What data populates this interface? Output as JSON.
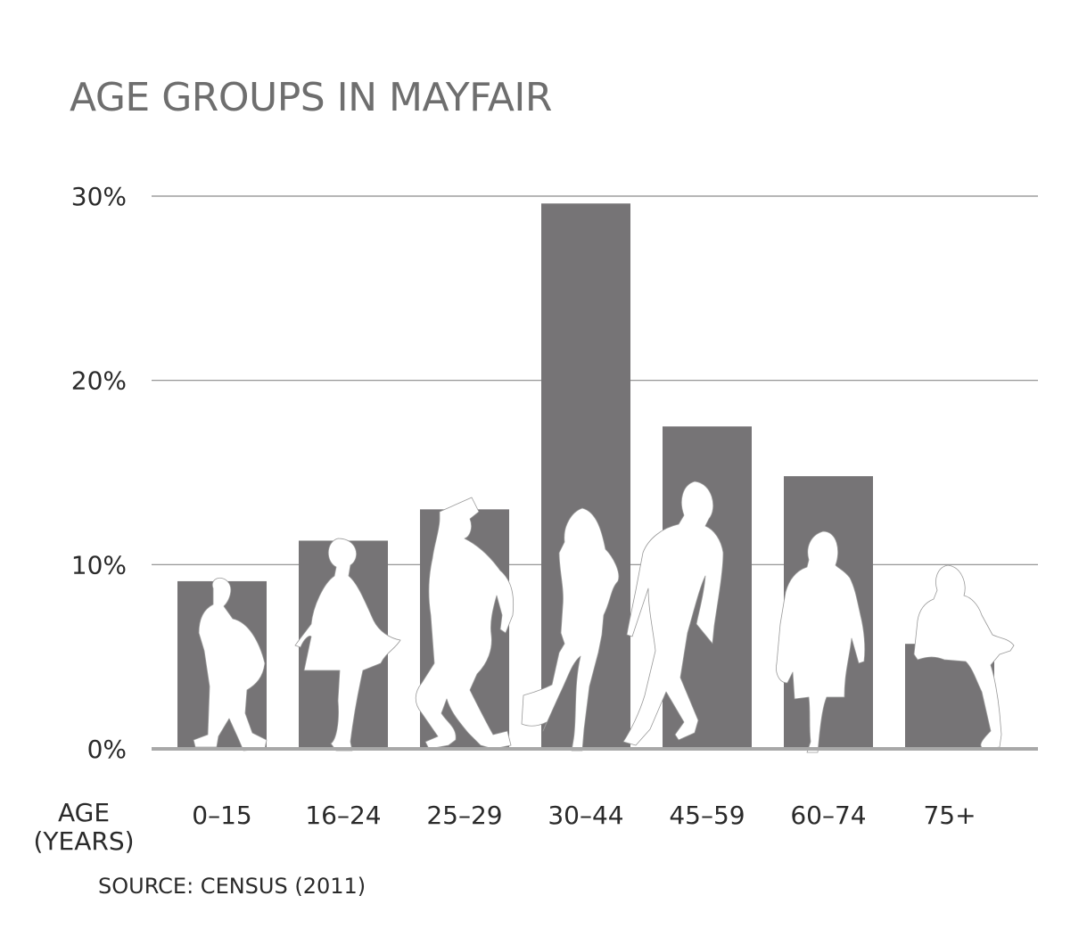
{
  "chart_data": {
    "type": "bar",
    "title": "AGE GROUPS IN MAYFAIR",
    "xlabel_lines": [
      "AGE",
      "(YEARS)"
    ],
    "ylabel": "",
    "categories": [
      "0–15",
      "16–24",
      "25–29",
      "30–44",
      "45–59",
      "60–74",
      "75+"
    ],
    "values": [
      9.1,
      11.3,
      13.0,
      29.6,
      17.5,
      14.8,
      5.7
    ],
    "unit": "%",
    "ylim": [
      0,
      30
    ],
    "yticks": [
      0,
      10,
      20,
      30
    ],
    "ytick_labels": [
      "0%",
      "10%",
      "20%",
      "30%"
    ],
    "grid": true,
    "legend": "none",
    "source": "SOURCE: CENSUS (2011)",
    "colors": {
      "bar": "#767476",
      "grid": "#8a8a8a",
      "baseline": "#a8a8a8",
      "title": "#6e6e6e",
      "text": "#2a2a2a",
      "silhouette": "#ffffff"
    }
  }
}
